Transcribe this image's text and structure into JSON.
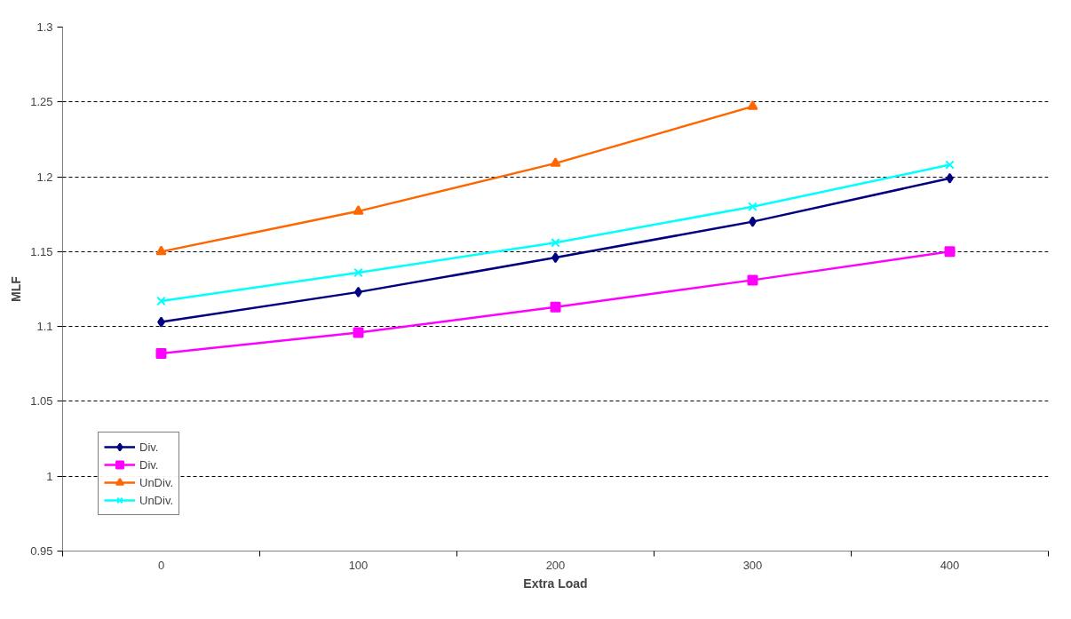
{
  "chart_data": {
    "type": "line",
    "xlabel": "Extra Load",
    "ylabel": "MLF",
    "categories": [
      "0",
      "100",
      "200",
      "300",
      "400"
    ],
    "series": [
      {
        "name": "Div.",
        "color": "#000080",
        "marker": "diamond",
        "values": [
          1.103,
          1.123,
          1.146,
          1.17,
          1.199
        ]
      },
      {
        "name": "Div.",
        "color": "#ff00ff",
        "marker": "square",
        "values": [
          1.082,
          1.096,
          1.113,
          1.131,
          1.15
        ]
      },
      {
        "name": "UnDiv.",
        "color": "#ff6600",
        "marker": "triangle",
        "values": [
          1.15,
          1.177,
          1.209,
          1.247,
          null
        ]
      },
      {
        "name": "UnDiv.",
        "color": "#00ffff",
        "marker": "cross",
        "values": [
          1.117,
          1.136,
          1.156,
          1.18,
          1.208
        ]
      }
    ],
    "ylim": [
      0.95,
      1.3
    ],
    "yticks": [
      0.95,
      1,
      1.05,
      1.1,
      1.15,
      1.2,
      1.25,
      1.3
    ],
    "grid": "y",
    "legend": "bottom left",
    "line_style": "solid"
  }
}
